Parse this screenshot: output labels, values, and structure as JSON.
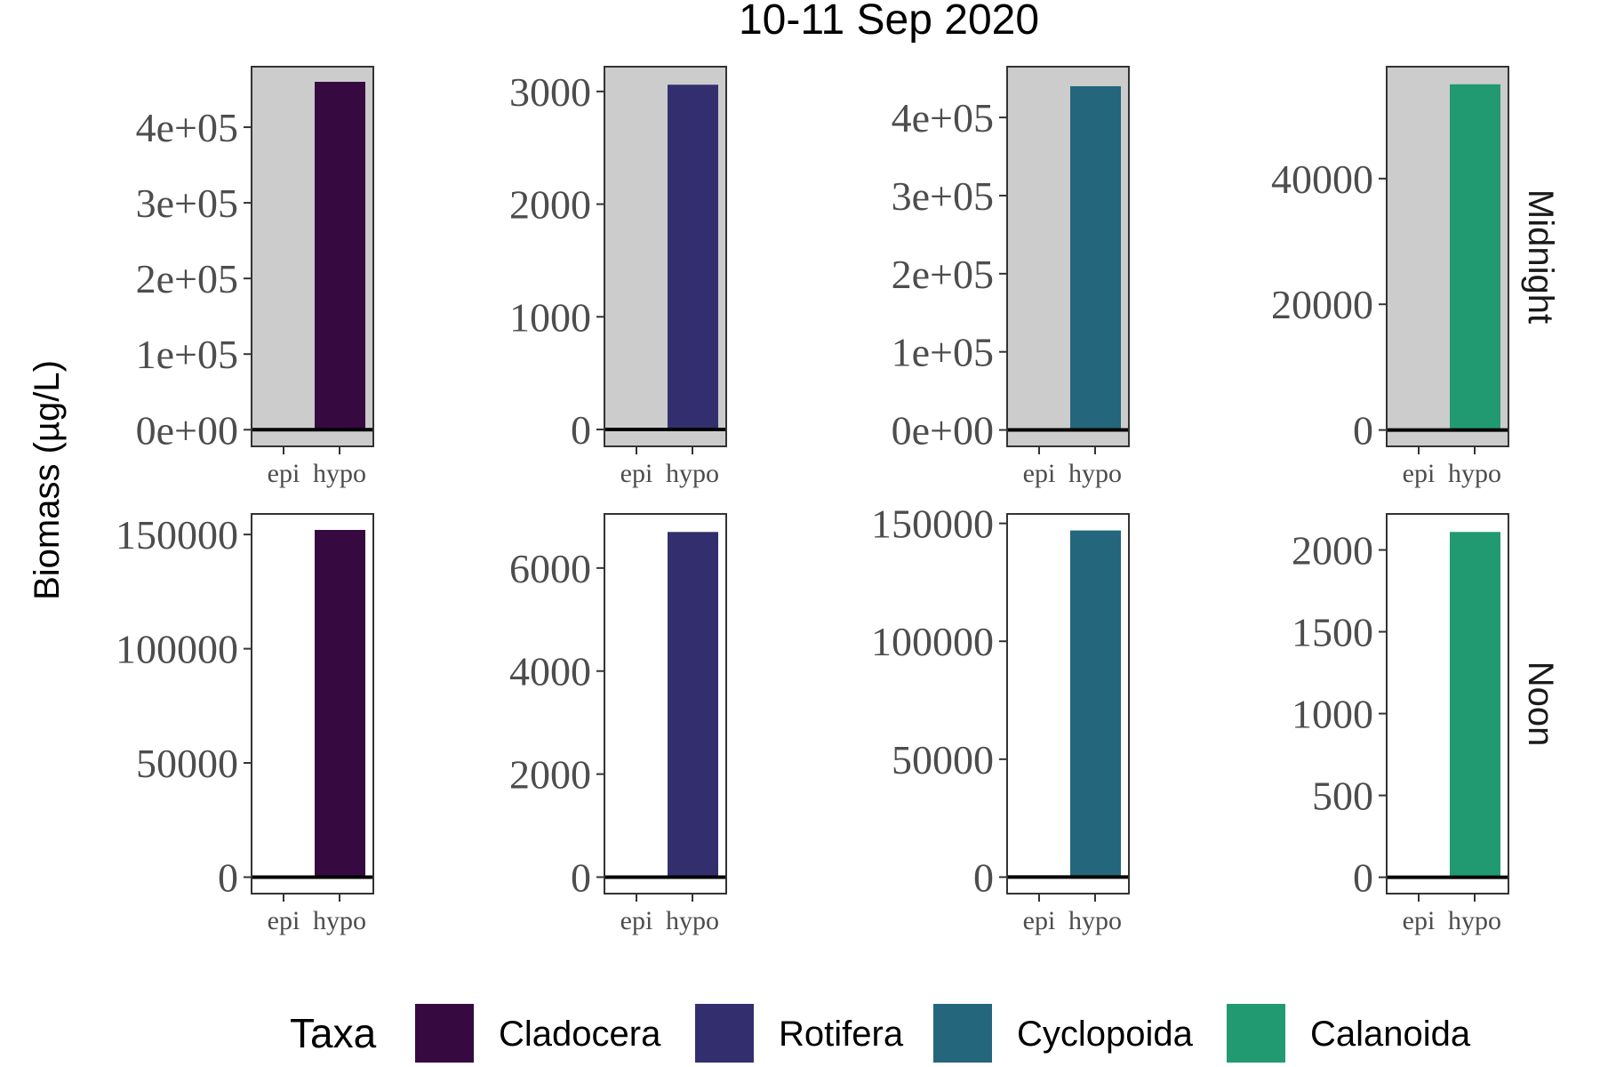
{
  "chart_data": {
    "type": "bar",
    "title": "10-11 Sep 2020",
    "ylabel": "Biomass (µg/L)",
    "xlabel": "",
    "categories": [
      "epi",
      "hypo"
    ],
    "rows": [
      "Midnight",
      "Noon"
    ],
    "legend": {
      "title": "Taxa",
      "position": "bottom"
    },
    "series": [
      {
        "name": "Cladocera",
        "color": "#360a41"
      },
      {
        "name": "Rotifera",
        "color": "#332f6e"
      },
      {
        "name": "Cyclopoida",
        "color": "#24667b"
      },
      {
        "name": "Calanoida",
        "color": "#219a72"
      }
    ],
    "panels": [
      {
        "row": "Midnight",
        "taxon": "Cladocera",
        "values": [
          0,
          460000
        ],
        "ylim": [
          -22000,
          480000
        ],
        "yticks": [
          0,
          100000,
          200000,
          300000,
          400000
        ],
        "yticklabels": [
          "0e+00",
          "1e+05",
          "2e+05",
          "3e+05",
          "4e+05"
        ],
        "background": "#cccccc"
      },
      {
        "row": "Midnight",
        "taxon": "Rotifera",
        "values": [
          0,
          3060
        ],
        "ylim": [
          -150,
          3220
        ],
        "yticks": [
          0,
          1000,
          2000,
          3000
        ],
        "yticklabels": [
          "0",
          "1000",
          "2000",
          "3000"
        ],
        "background": "#cccccc"
      },
      {
        "row": "Midnight",
        "taxon": "Cyclopoida",
        "values": [
          0,
          440000
        ],
        "ylim": [
          -21000,
          465000
        ],
        "yticks": [
          0,
          100000,
          200000,
          300000,
          400000
        ],
        "yticklabels": [
          "0e+00",
          "1e+05",
          "2e+05",
          "3e+05",
          "4e+05"
        ],
        "background": "#cccccc"
      },
      {
        "row": "Midnight",
        "taxon": "Calanoida",
        "values": [
          0,
          55000
        ],
        "ylim": [
          -2600,
          57800
        ],
        "yticks": [
          0,
          20000,
          40000
        ],
        "yticklabels": [
          "0",
          "20000",
          "40000"
        ],
        "background": "#cccccc"
      },
      {
        "row": "Noon",
        "taxon": "Cladocera",
        "values": [
          0,
          152000
        ],
        "ylim": [
          -7200,
          159000
        ],
        "yticks": [
          0,
          50000,
          100000,
          150000
        ],
        "yticklabels": [
          "0",
          "50000",
          "100000",
          "150000"
        ],
        "background": "#ffffff"
      },
      {
        "row": "Noon",
        "taxon": "Rotifera",
        "values": [
          0,
          6700
        ],
        "ylim": [
          -320,
          7050
        ],
        "yticks": [
          0,
          2000,
          4000,
          6000
        ],
        "yticklabels": [
          "0",
          "2000",
          "4000",
          "6000"
        ],
        "background": "#ffffff"
      },
      {
        "row": "Noon",
        "taxon": "Cyclopoida",
        "values": [
          0,
          147000
        ],
        "ylim": [
          -7000,
          154000
        ],
        "yticks": [
          0,
          50000,
          100000,
          150000
        ],
        "yticklabels": [
          "0",
          "50000",
          "100000",
          "150000"
        ],
        "background": "#ffffff"
      },
      {
        "row": "Noon",
        "taxon": "Calanoida",
        "values": [
          0,
          2110
        ],
        "ylim": [
          -100,
          2220
        ],
        "yticks": [
          0,
          500,
          1000,
          1500,
          2000
        ],
        "yticklabels": [
          "0",
          "500",
          "1000",
          "1500",
          "2000"
        ],
        "background": "#ffffff"
      }
    ]
  }
}
